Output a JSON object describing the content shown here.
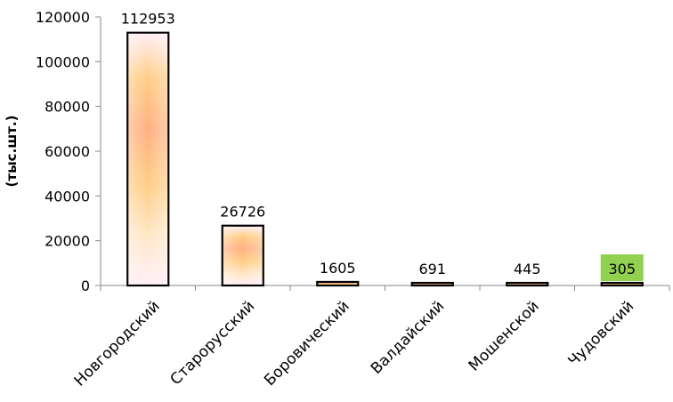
{
  "chart_data": {
    "type": "bar",
    "title": "",
    "xlabel": "",
    "ylabel": "(тыс.шт.)",
    "categories": [
      "Новгородский",
      "Старорусский",
      "Боровический",
      "Валдайский",
      "Мошенской",
      "Чудовский"
    ],
    "values": [
      112953,
      26726,
      1605,
      691,
      445,
      305
    ],
    "ylim": [
      0,
      120000
    ],
    "yticks": [
      0,
      20000,
      40000,
      60000,
      80000,
      100000,
      120000
    ],
    "ytick_labels": [
      "0",
      "20000",
      "40000",
      "60000",
      "80000",
      "100000",
      "120000"
    ],
    "data_labels": [
      "112953",
      "26726",
      "1605",
      "691",
      "445",
      "305"
    ],
    "grid": false,
    "legend": "none",
    "highlighted_label_index": 5,
    "colors": {
      "bar_outline": "#000000",
      "bar_fill_edge": "#fff6ec",
      "bar_fill_light": "#ffe6c6",
      "bar_fill_mid": "#ffcd85",
      "bar_fill_core": "#ffb080",
      "bar_fill_pink": "#ffeef8",
      "highlight_label_bg": "#92d050",
      "axis": "#888888"
    }
  }
}
